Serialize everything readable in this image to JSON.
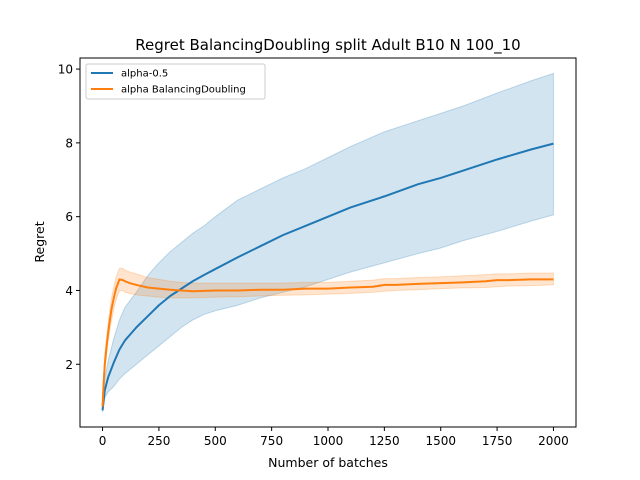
{
  "chart_data": {
    "type": "line",
    "title": "Regret BalancingDoubling split Adult B10 N 100_10",
    "xlabel": "Number of batches",
    "ylabel": "Regret",
    "xlim": [
      -100,
      2100
    ],
    "ylim": [
      0.3,
      10.3
    ],
    "xticks": [
      0,
      250,
      500,
      750,
      1000,
      1250,
      1500,
      1750,
      2000
    ],
    "yticks": [
      2,
      4,
      6,
      8,
      10
    ],
    "grid": false,
    "legend_position": "upper-left",
    "series": [
      {
        "name": "alpha-0.5",
        "color": "#1f77b4",
        "band_color": "#1f77b4",
        "x": [
          0,
          10,
          25,
          50,
          75,
          100,
          150,
          200,
          250,
          300,
          350,
          400,
          450,
          500,
          600,
          700,
          800,
          900,
          1000,
          1100,
          1250,
          1400,
          1500,
          1600,
          1750,
          1900,
          2000
        ],
        "y": [
          0.75,
          1.3,
          1.65,
          2.05,
          2.4,
          2.65,
          3.0,
          3.3,
          3.6,
          3.85,
          4.05,
          4.25,
          4.42,
          4.58,
          4.9,
          5.2,
          5.5,
          5.75,
          6.0,
          6.25,
          6.55,
          6.88,
          7.05,
          7.25,
          7.55,
          7.82,
          7.98
        ],
        "lower": [
          0.7,
          1.1,
          1.25,
          1.4,
          1.6,
          1.75,
          2.0,
          2.25,
          2.5,
          2.75,
          3.0,
          3.2,
          3.35,
          3.45,
          3.6,
          3.8,
          3.95,
          4.1,
          4.3,
          4.5,
          4.75,
          5.0,
          5.15,
          5.35,
          5.6,
          5.88,
          6.05
        ],
        "upper": [
          0.82,
          1.6,
          2.1,
          2.7,
          3.2,
          3.55,
          3.95,
          4.4,
          4.75,
          5.05,
          5.3,
          5.55,
          5.75,
          6.0,
          6.45,
          6.75,
          7.05,
          7.3,
          7.6,
          7.9,
          8.3,
          8.6,
          8.8,
          9.0,
          9.35,
          9.68,
          9.88
        ]
      },
      {
        "name": "alpha BalancingDoubling",
        "color": "#ff7f0e",
        "band_color": "#ff7f0e",
        "x": [
          0,
          5,
          10,
          20,
          30,
          40,
          50,
          60,
          75,
          90,
          100,
          120,
          150,
          200,
          250,
          300,
          350,
          400,
          500,
          600,
          700,
          800,
          900,
          1000,
          1100,
          1200,
          1250,
          1300,
          1400,
          1500,
          1600,
          1700,
          1750,
          1800,
          1900,
          2000
        ],
        "y": [
          0.85,
          1.5,
          2.0,
          2.6,
          3.1,
          3.5,
          3.8,
          4.05,
          4.3,
          4.28,
          4.25,
          4.2,
          4.15,
          4.08,
          4.05,
          4.02,
          4.0,
          3.98,
          4.0,
          4.0,
          4.02,
          4.02,
          4.05,
          4.05,
          4.08,
          4.1,
          4.15,
          4.15,
          4.18,
          4.2,
          4.22,
          4.25,
          4.28,
          4.28,
          4.3,
          4.3
        ],
        "lower": [
          0.8,
          1.3,
          1.8,
          2.4,
          2.85,
          3.2,
          3.5,
          3.75,
          4.0,
          4.0,
          3.95,
          3.92,
          3.88,
          3.85,
          3.82,
          3.8,
          3.8,
          3.8,
          3.82,
          3.83,
          3.85,
          3.87,
          3.88,
          3.9,
          3.92,
          3.95,
          3.98,
          4.0,
          4.02,
          4.05,
          4.07,
          4.08,
          4.1,
          4.12,
          4.13,
          4.15
        ],
        "upper": [
          0.95,
          1.7,
          2.3,
          2.85,
          3.35,
          3.8,
          4.1,
          4.35,
          4.6,
          4.6,
          4.55,
          4.5,
          4.45,
          4.35,
          4.3,
          4.25,
          4.22,
          4.2,
          4.2,
          4.2,
          4.2,
          4.2,
          4.22,
          4.22,
          4.25,
          4.28,
          4.32,
          4.32,
          4.35,
          4.37,
          4.4,
          4.43,
          4.45,
          4.45,
          4.47,
          4.47
        ]
      }
    ]
  }
}
